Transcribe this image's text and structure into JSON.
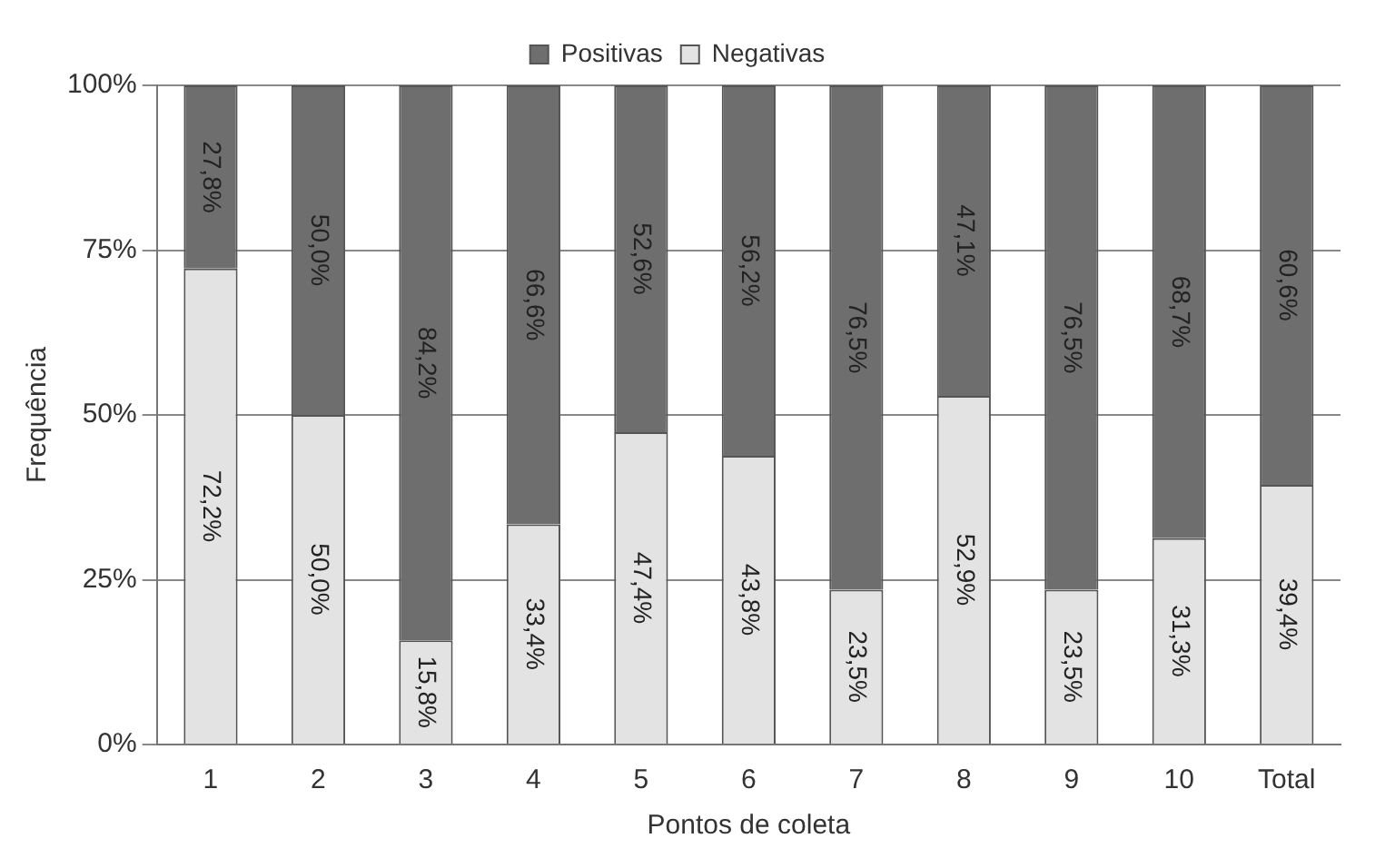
{
  "chart_data": {
    "type": "bar",
    "xlabel": "Pontos de coleta",
    "ylabel": "Frequência",
    "stacked": true,
    "categories": [
      "1",
      "2",
      "3",
      "4",
      "5",
      "6",
      "7",
      "8",
      "9",
      "10",
      "Total"
    ],
    "series": [
      {
        "name": "Negativas",
        "color": "#e3e3e3",
        "values": [
          72.2,
          50.0,
          15.8,
          33.4,
          47.4,
          43.8,
          23.5,
          52.9,
          23.5,
          31.3,
          39.4
        ],
        "value_labels": [
          "72,2%",
          "50,0%",
          "15,8%",
          "33,4%",
          "47,4%",
          "43,8%",
          "23,5%",
          "52,9%",
          "23,5%",
          "31,3%",
          "39,4%"
        ]
      },
      {
        "name": "Positivas",
        "color": "#6e6e6e",
        "values": [
          27.8,
          50.0,
          84.2,
          66.6,
          52.6,
          56.2,
          76.5,
          47.1,
          76.5,
          68.7,
          60.6
        ],
        "value_labels": [
          "27,8%",
          "50,0%",
          "84,2%",
          "66,6%",
          "52,6%",
          "56,2%",
          "76,5%",
          "47,1%",
          "76,5%",
          "68,7%",
          "60,6%"
        ]
      }
    ],
    "ylim": [
      0,
      100
    ],
    "yticks": [
      {
        "value": 0,
        "label": "0%"
      },
      {
        "value": 25,
        "label": "25%"
      },
      {
        "value": 50,
        "label": "50%"
      },
      {
        "value": 75,
        "label": "75%"
      },
      {
        "value": 100,
        "label": "100%"
      }
    ],
    "grid": "y",
    "legend": "top"
  }
}
